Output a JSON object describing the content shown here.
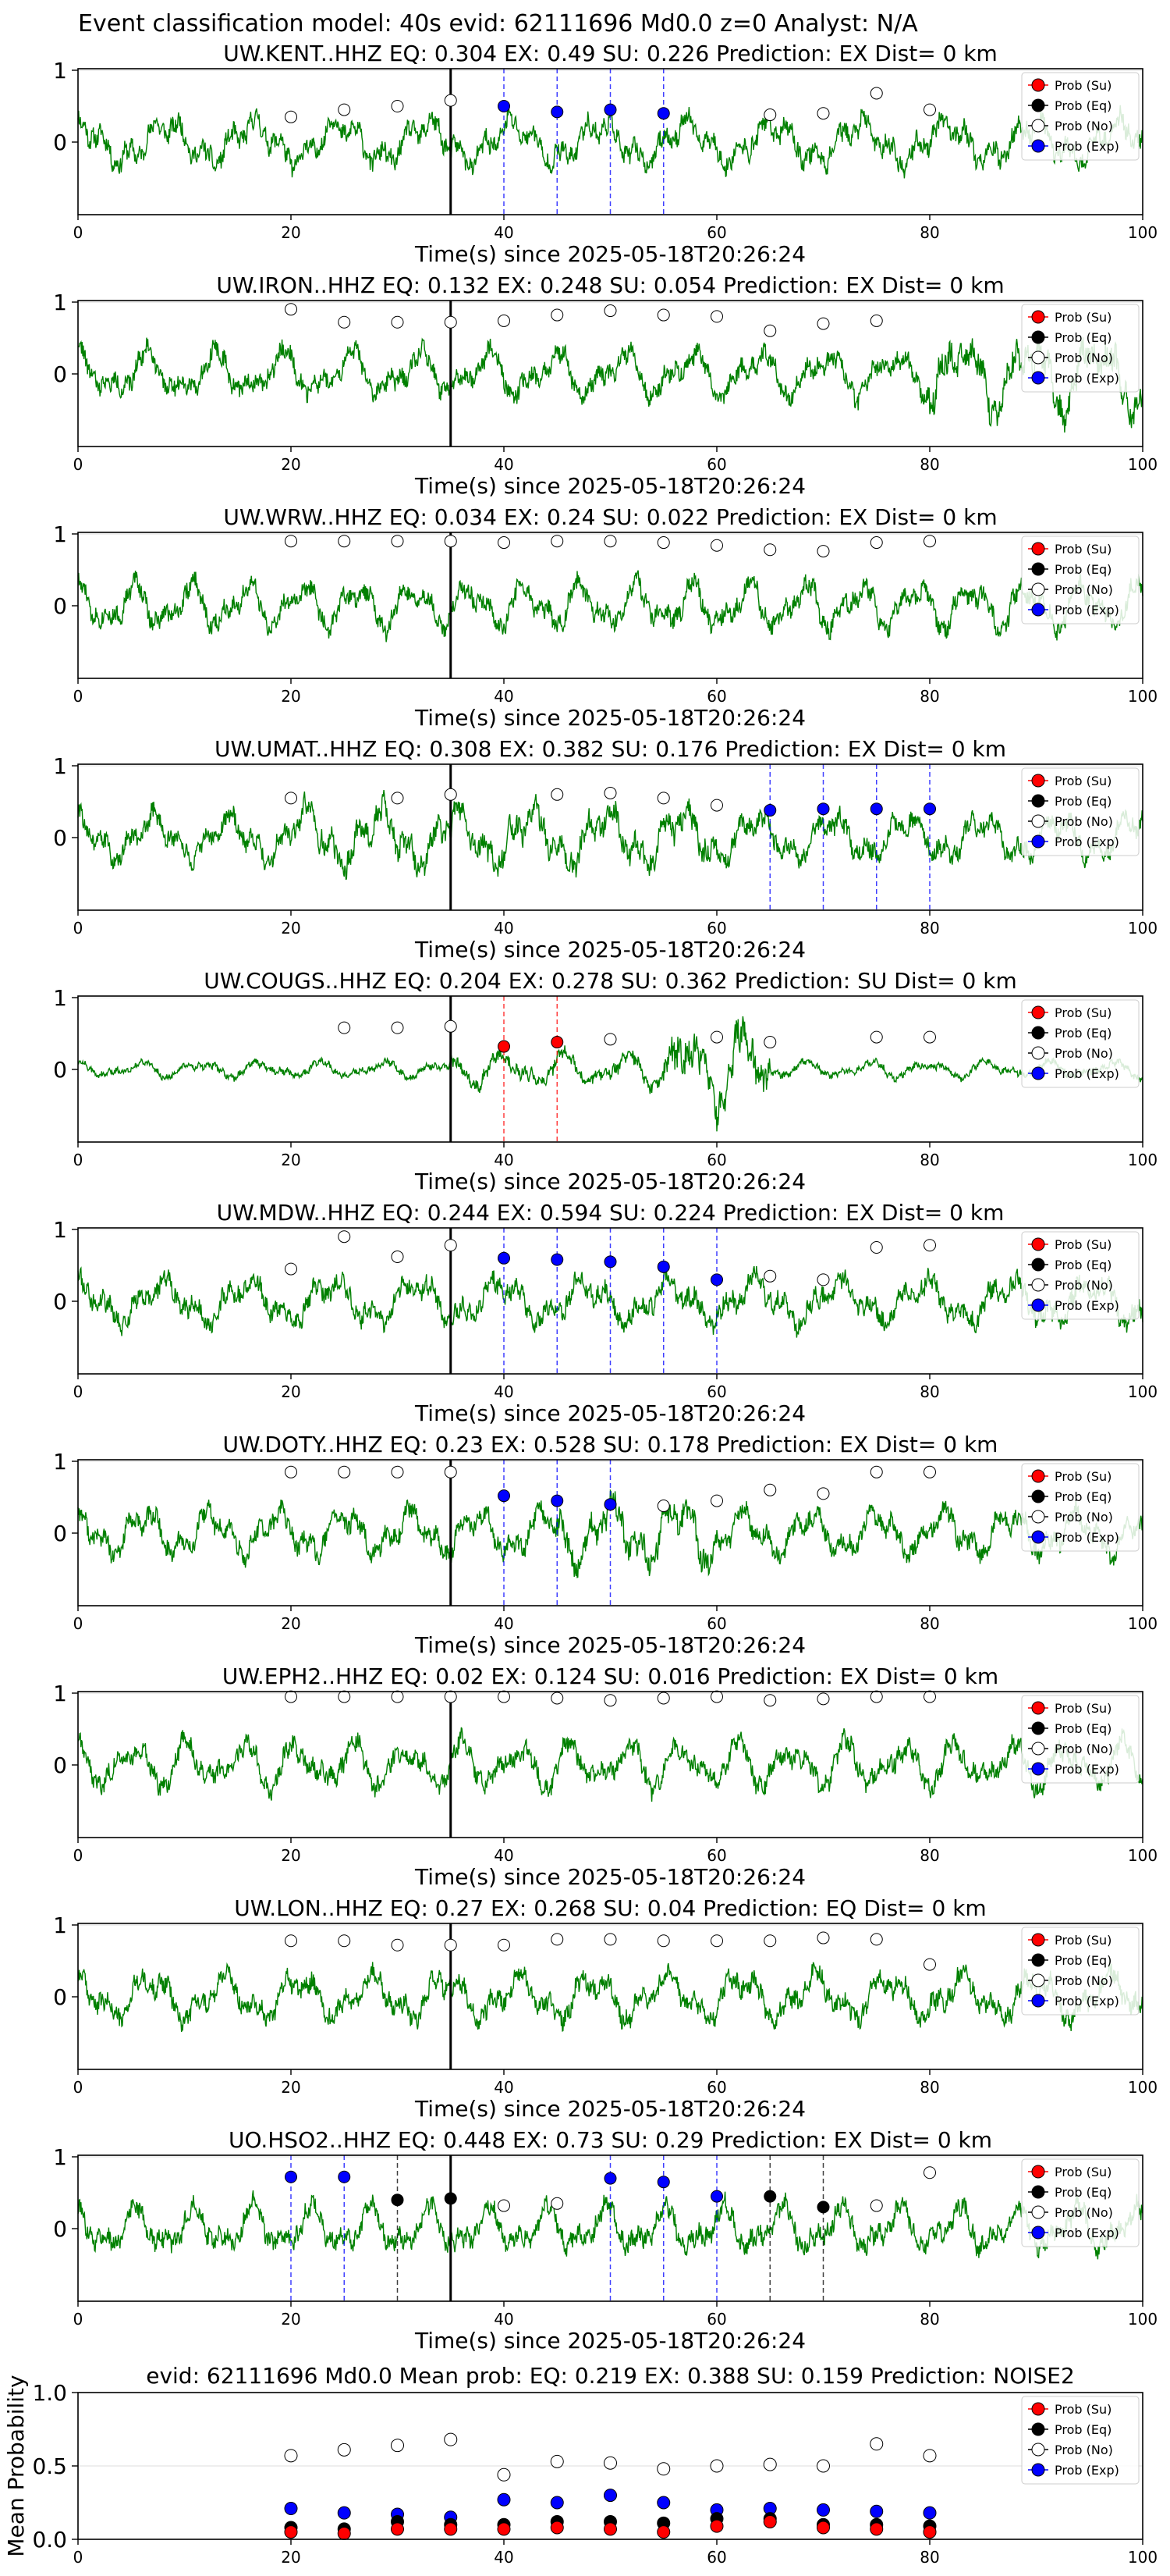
{
  "figure_title": "Event classification model: 40s evid: 62111696 Md0.0 z=0 Analyst: N/A",
  "colors": {
    "waveform": "#008000",
    "su": "#ff0000",
    "eq": "#000000",
    "no": "#ffffff",
    "exp": "#0000ff",
    "pick": "#000000"
  },
  "legend_labels": [
    "Prob (Su)",
    "Prob (Eq)",
    "Prob (No)",
    "Prob (Exp)"
  ],
  "chart_data": [
    {
      "type": "line",
      "station": "UW.KENT..HHZ",
      "title": "UW.KENT..HHZ   EQ: 0.304  EX: 0.49  SU: 0.226   Prediction: EX    Dist= 0 km",
      "xlabel": "Time(s) since 2025-05-18T20:26:24",
      "xlim": [
        0,
        100
      ],
      "xticks": [
        0,
        20,
        40,
        60,
        80,
        100
      ],
      "yticks": [
        0,
        1
      ],
      "pick_time": 35,
      "seed": 11,
      "energy": [],
      "points": [
        {
          "x": 20,
          "y": 0.35,
          "c": "no"
        },
        {
          "x": 25,
          "y": 0.45,
          "c": "no"
        },
        {
          "x": 30,
          "y": 0.5,
          "c": "no"
        },
        {
          "x": 35,
          "y": 0.58,
          "c": "no"
        },
        {
          "x": 40,
          "y": 0.5,
          "c": "exp"
        },
        {
          "x": 45,
          "y": 0.42,
          "c": "exp"
        },
        {
          "x": 50,
          "y": 0.45,
          "c": "exp"
        },
        {
          "x": 55,
          "y": 0.4,
          "c": "exp"
        },
        {
          "x": 65,
          "y": 0.38,
          "c": "no"
        },
        {
          "x": 70,
          "y": 0.4,
          "c": "no"
        },
        {
          "x": 75,
          "y": 0.68,
          "c": "no"
        },
        {
          "x": 80,
          "y": 0.45,
          "c": "no"
        }
      ]
    },
    {
      "type": "line",
      "station": "UW.IRON..HHZ",
      "title": "UW.IRON..HHZ   EQ: 0.132  EX: 0.248  SU: 0.054   Prediction: EX    Dist= 0 km",
      "xlabel": "Time(s) since 2025-05-18T20:26:24",
      "xlim": [
        0,
        100
      ],
      "xticks": [
        0,
        20,
        40,
        60,
        80,
        100
      ],
      "yticks": [
        0,
        1
      ],
      "pick_time": 35,
      "seed": 22,
      "energy": [
        [
          80,
          100,
          1.6
        ]
      ],
      "points": [
        {
          "x": 20,
          "y": 0.9,
          "c": "no"
        },
        {
          "x": 25,
          "y": 0.72,
          "c": "no"
        },
        {
          "x": 30,
          "y": 0.72,
          "c": "no"
        },
        {
          "x": 35,
          "y": 0.72,
          "c": "no"
        },
        {
          "x": 40,
          "y": 0.74,
          "c": "no"
        },
        {
          "x": 45,
          "y": 0.82,
          "c": "no"
        },
        {
          "x": 50,
          "y": 0.88,
          "c": "no"
        },
        {
          "x": 55,
          "y": 0.82,
          "c": "no"
        },
        {
          "x": 60,
          "y": 0.8,
          "c": "no"
        },
        {
          "x": 65,
          "y": 0.6,
          "c": "no"
        },
        {
          "x": 70,
          "y": 0.7,
          "c": "no"
        },
        {
          "x": 75,
          "y": 0.74,
          "c": "no"
        }
      ]
    },
    {
      "type": "line",
      "station": "UW.WRW..HHZ",
      "title": "UW.WRW..HHZ   EQ: 0.034  EX: 0.24  SU: 0.022   Prediction: EX    Dist= 0 km",
      "xlabel": "Time(s) since 2025-05-18T20:26:24",
      "xlim": [
        0,
        100
      ],
      "xticks": [
        0,
        20,
        40,
        60,
        80,
        100
      ],
      "yticks": [
        0,
        1
      ],
      "pick_time": 35,
      "seed": 33,
      "energy": [],
      "points": [
        {
          "x": 20,
          "y": 0.9,
          "c": "no"
        },
        {
          "x": 25,
          "y": 0.9,
          "c": "no"
        },
        {
          "x": 30,
          "y": 0.9,
          "c": "no"
        },
        {
          "x": 35,
          "y": 0.9,
          "c": "no"
        },
        {
          "x": 40,
          "y": 0.88,
          "c": "no"
        },
        {
          "x": 45,
          "y": 0.9,
          "c": "no"
        },
        {
          "x": 50,
          "y": 0.9,
          "c": "no"
        },
        {
          "x": 55,
          "y": 0.88,
          "c": "no"
        },
        {
          "x": 60,
          "y": 0.84,
          "c": "no"
        },
        {
          "x": 65,
          "y": 0.78,
          "c": "no"
        },
        {
          "x": 70,
          "y": 0.76,
          "c": "no"
        },
        {
          "x": 75,
          "y": 0.88,
          "c": "no"
        },
        {
          "x": 80,
          "y": 0.9,
          "c": "no"
        }
      ]
    },
    {
      "type": "line",
      "station": "UW.UMAT..HHZ",
      "title": "UW.UMAT..HHZ   EQ: 0.308  EX: 0.382  SU: 0.176   Prediction: EX    Dist= 0 km",
      "xlabel": "Time(s) since 2025-05-18T20:26:24",
      "xlim": [
        0,
        100
      ],
      "xticks": [
        0,
        20,
        40,
        60,
        80,
        100
      ],
      "yticks": [
        0,
        1
      ],
      "pick_time": 35,
      "seed": 44,
      "energy": [
        [
          20,
          60,
          1.3
        ]
      ],
      "points": [
        {
          "x": 20,
          "y": 0.55,
          "c": "no"
        },
        {
          "x": 30,
          "y": 0.55,
          "c": "no"
        },
        {
          "x": 35,
          "y": 0.6,
          "c": "no"
        },
        {
          "x": 45,
          "y": 0.6,
          "c": "no"
        },
        {
          "x": 50,
          "y": 0.62,
          "c": "no"
        },
        {
          "x": 55,
          "y": 0.55,
          "c": "no"
        },
        {
          "x": 60,
          "y": 0.45,
          "c": "no"
        },
        {
          "x": 65,
          "y": 0.38,
          "c": "exp"
        },
        {
          "x": 70,
          "y": 0.4,
          "c": "exp"
        },
        {
          "x": 75,
          "y": 0.4,
          "c": "exp"
        },
        {
          "x": 80,
          "y": 0.4,
          "c": "exp"
        }
      ]
    },
    {
      "type": "line",
      "station": "UW.COUGS..HHZ",
      "title": "UW.COUGS..HHZ   EQ: 0.204  EX: 0.278  SU: 0.362   Prediction: SU    Dist= 0 km",
      "xlabel": "Time(s) since 2025-05-18T20:26:24",
      "xlim": [
        0,
        100
      ],
      "xticks": [
        0,
        20,
        40,
        60,
        80,
        100
      ],
      "yticks": [
        0,
        1
      ],
      "pick_time": 35,
      "seed": 55,
      "energy": [
        [
          0,
          35,
          0.35
        ],
        [
          35,
          55,
          0.7
        ],
        [
          55,
          65,
          1.8
        ],
        [
          65,
          100,
          0.35
        ]
      ],
      "points": [
        {
          "x": 25,
          "y": 0.58,
          "c": "no"
        },
        {
          "x": 30,
          "y": 0.58,
          "c": "no"
        },
        {
          "x": 35,
          "y": 0.6,
          "c": "no"
        },
        {
          "x": 40,
          "y": 0.32,
          "c": "su"
        },
        {
          "x": 45,
          "y": 0.38,
          "c": "su"
        },
        {
          "x": 50,
          "y": 0.42,
          "c": "no"
        },
        {
          "x": 60,
          "y": 0.45,
          "c": "no"
        },
        {
          "x": 65,
          "y": 0.38,
          "c": "no"
        },
        {
          "x": 75,
          "y": 0.45,
          "c": "no"
        },
        {
          "x": 80,
          "y": 0.45,
          "c": "no"
        }
      ]
    },
    {
      "type": "line",
      "station": "UW.MDW..HHZ",
      "title": "UW.MDW..HHZ   EQ: 0.244  EX: 0.594  SU: 0.224   Prediction: EX    Dist= 0 km",
      "xlabel": "Time(s) since 2025-05-18T20:26:24",
      "xlim": [
        0,
        100
      ],
      "xticks": [
        0,
        20,
        40,
        60,
        80,
        100
      ],
      "yticks": [
        0,
        1
      ],
      "pick_time": 35,
      "seed": 66,
      "energy": [],
      "points": [
        {
          "x": 20,
          "y": 0.45,
          "c": "no"
        },
        {
          "x": 25,
          "y": 0.9,
          "c": "no"
        },
        {
          "x": 30,
          "y": 0.62,
          "c": "no"
        },
        {
          "x": 35,
          "y": 0.78,
          "c": "no"
        },
        {
          "x": 40,
          "y": 0.6,
          "c": "exp"
        },
        {
          "x": 45,
          "y": 0.58,
          "c": "exp"
        },
        {
          "x": 50,
          "y": 0.55,
          "c": "exp"
        },
        {
          "x": 55,
          "y": 0.48,
          "c": "exp"
        },
        {
          "x": 60,
          "y": 0.3,
          "c": "exp"
        },
        {
          "x": 65,
          "y": 0.35,
          "c": "no"
        },
        {
          "x": 70,
          "y": 0.3,
          "c": "no"
        },
        {
          "x": 75,
          "y": 0.75,
          "c": "no"
        },
        {
          "x": 80,
          "y": 0.78,
          "c": "no"
        }
      ]
    },
    {
      "type": "line",
      "station": "UW.DOTY..HHZ",
      "title": "UW.DOTY..HHZ   EQ: 0.23  EX: 0.528  SU: 0.178   Prediction: EX    Dist= 0 km",
      "xlabel": "Time(s) since 2025-05-18T20:26:24",
      "xlim": [
        0,
        100
      ],
      "xticks": [
        0,
        20,
        40,
        60,
        80,
        100
      ],
      "yticks": [
        0,
        1
      ],
      "pick_time": 35,
      "seed": 77,
      "energy": [
        [
          45,
          60,
          1.4
        ]
      ],
      "points": [
        {
          "x": 20,
          "y": 0.85,
          "c": "no"
        },
        {
          "x": 25,
          "y": 0.85,
          "c": "no"
        },
        {
          "x": 30,
          "y": 0.85,
          "c": "no"
        },
        {
          "x": 35,
          "y": 0.85,
          "c": "no"
        },
        {
          "x": 40,
          "y": 0.52,
          "c": "exp"
        },
        {
          "x": 45,
          "y": 0.45,
          "c": "exp"
        },
        {
          "x": 50,
          "y": 0.4,
          "c": "exp"
        },
        {
          "x": 55,
          "y": 0.38,
          "c": "no"
        },
        {
          "x": 60,
          "y": 0.45,
          "c": "no"
        },
        {
          "x": 65,
          "y": 0.6,
          "c": "no"
        },
        {
          "x": 70,
          "y": 0.55,
          "c": "no"
        },
        {
          "x": 75,
          "y": 0.85,
          "c": "no"
        },
        {
          "x": 80,
          "y": 0.85,
          "c": "no"
        }
      ]
    },
    {
      "type": "line",
      "station": "UW.EPH2..HHZ",
      "title": "UW.EPH2..HHZ   EQ: 0.02  EX: 0.124  SU: 0.016   Prediction: EX    Dist= 0 km",
      "xlabel": "Time(s) since 2025-05-18T20:26:24",
      "xlim": [
        0,
        100
      ],
      "xticks": [
        0,
        20,
        40,
        60,
        80,
        100
      ],
      "yticks": [
        0,
        1
      ],
      "pick_time": 35,
      "seed": 88,
      "energy": [],
      "points": [
        {
          "x": 20,
          "y": 0.95,
          "c": "no"
        },
        {
          "x": 25,
          "y": 0.95,
          "c": "no"
        },
        {
          "x": 30,
          "y": 0.95,
          "c": "no"
        },
        {
          "x": 35,
          "y": 0.95,
          "c": "no"
        },
        {
          "x": 40,
          "y": 0.95,
          "c": "no"
        },
        {
          "x": 45,
          "y": 0.93,
          "c": "no"
        },
        {
          "x": 50,
          "y": 0.9,
          "c": "no"
        },
        {
          "x": 55,
          "y": 0.93,
          "c": "no"
        },
        {
          "x": 60,
          "y": 0.95,
          "c": "no"
        },
        {
          "x": 65,
          "y": 0.9,
          "c": "no"
        },
        {
          "x": 70,
          "y": 0.92,
          "c": "no"
        },
        {
          "x": 75,
          "y": 0.95,
          "c": "no"
        },
        {
          "x": 80,
          "y": 0.95,
          "c": "no"
        }
      ]
    },
    {
      "type": "line",
      "station": "UW.LON..HHZ",
      "title": "UW.LON..HHZ   EQ: 0.27  EX: 0.268  SU: 0.04   Prediction: EQ    Dist= 0 km",
      "xlabel": "Time(s) since 2025-05-18T20:26:24",
      "xlim": [
        0,
        100
      ],
      "xticks": [
        0,
        20,
        40,
        60,
        80,
        100
      ],
      "yticks": [
        0,
        1
      ],
      "pick_time": 35,
      "seed": 99,
      "energy": [],
      "points": [
        {
          "x": 20,
          "y": 0.78,
          "c": "no"
        },
        {
          "x": 25,
          "y": 0.78,
          "c": "no"
        },
        {
          "x": 30,
          "y": 0.72,
          "c": "no"
        },
        {
          "x": 35,
          "y": 0.72,
          "c": "no"
        },
        {
          "x": 40,
          "y": 0.72,
          "c": "no"
        },
        {
          "x": 45,
          "y": 0.8,
          "c": "no"
        },
        {
          "x": 50,
          "y": 0.8,
          "c": "no"
        },
        {
          "x": 55,
          "y": 0.78,
          "c": "no"
        },
        {
          "x": 60,
          "y": 0.78,
          "c": "no"
        },
        {
          "x": 65,
          "y": 0.78,
          "c": "no"
        },
        {
          "x": 70,
          "y": 0.82,
          "c": "no"
        },
        {
          "x": 75,
          "y": 0.8,
          "c": "no"
        },
        {
          "x": 80,
          "y": 0.45,
          "c": "no"
        }
      ]
    },
    {
      "type": "line",
      "station": "UO.HSO2..HHZ",
      "title": "UO.HSO2..HHZ   EQ: 0.448  EX: 0.73  SU: 0.29   Prediction: EX    Dist= 0 km",
      "xlabel": "Time(s) since 2025-05-18T20:26:24",
      "xlim": [
        0,
        100
      ],
      "xticks": [
        0,
        20,
        40,
        60,
        80,
        100
      ],
      "yticks": [
        0,
        1
      ],
      "pick_time": 35,
      "seed": 111,
      "energy": [],
      "points": [
        {
          "x": 20,
          "y": 0.72,
          "c": "exp"
        },
        {
          "x": 25,
          "y": 0.72,
          "c": "exp"
        },
        {
          "x": 30,
          "y": 0.4,
          "c": "eq"
        },
        {
          "x": 35,
          "y": 0.42,
          "c": "eq"
        },
        {
          "x": 40,
          "y": 0.32,
          "c": "no"
        },
        {
          "x": 45,
          "y": 0.35,
          "c": "no"
        },
        {
          "x": 50,
          "y": 0.7,
          "c": "exp"
        },
        {
          "x": 55,
          "y": 0.65,
          "c": "exp"
        },
        {
          "x": 60,
          "y": 0.45,
          "c": "exp"
        },
        {
          "x": 65,
          "y": 0.45,
          "c": "eq"
        },
        {
          "x": 70,
          "y": 0.3,
          "c": "eq"
        },
        {
          "x": 75,
          "y": 0.32,
          "c": "no"
        },
        {
          "x": 80,
          "y": 0.78,
          "c": "no"
        }
      ]
    },
    {
      "type": "scatter",
      "title": "evid: 62111696  Md0.0   Mean prob:   EQ: 0.219  EX: 0.388  SU: 0.159   Prediction: NOISE2",
      "ylabel": "Mean Probability",
      "xlim": [
        0,
        100
      ],
      "ylim": [
        0,
        1
      ],
      "xticks": [
        0,
        20,
        40,
        60,
        80,
        100
      ],
      "yticks": [
        0.0,
        0.5,
        1.0
      ],
      "x": [
        20,
        25,
        30,
        35,
        40,
        45,
        50,
        55,
        60,
        65,
        70,
        75,
        80
      ],
      "series": [
        {
          "key": "no",
          "name": "Prob (No)",
          "values": [
            0.57,
            0.61,
            0.64,
            0.68,
            0.44,
            0.53,
            0.52,
            0.48,
            0.5,
            0.51,
            0.5,
            0.65,
            0.57
          ]
        },
        {
          "key": "exp",
          "name": "Prob (Exp)",
          "values": [
            0.21,
            0.18,
            0.17,
            0.15,
            0.27,
            0.25,
            0.3,
            0.25,
            0.2,
            0.21,
            0.2,
            0.19,
            0.18
          ]
        },
        {
          "key": "eq",
          "name": "Prob (Eq)",
          "values": [
            0.08,
            0.07,
            0.12,
            0.1,
            0.1,
            0.12,
            0.12,
            0.11,
            0.14,
            0.14,
            0.1,
            0.1,
            0.09
          ]
        },
        {
          "key": "su",
          "name": "Prob (Su)",
          "values": [
            0.05,
            0.04,
            0.07,
            0.07,
            0.07,
            0.08,
            0.07,
            0.05,
            0.09,
            0.12,
            0.08,
            0.07,
            0.05
          ]
        }
      ]
    }
  ]
}
